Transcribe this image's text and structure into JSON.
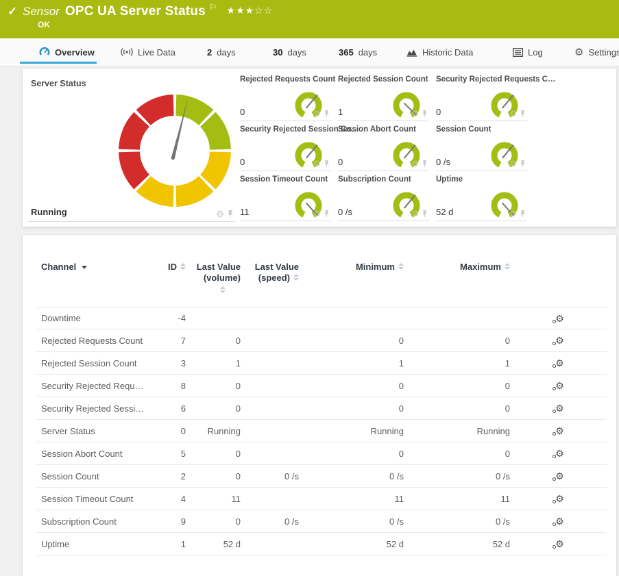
{
  "colors": {
    "header_green": "#a9ba10",
    "gauge_green": "#a3bd13",
    "gauge_yellow": "#f1c400",
    "gauge_red": "#d22d2b",
    "accent_blue": "#35a8dc",
    "needle_gray": "#767676"
  },
  "header": {
    "kind": "Sensor",
    "title": "OPC UA Server Status",
    "status": "OK",
    "stars": {
      "filled": 3,
      "total": 5
    }
  },
  "tabs": [
    {
      "label": "Overview",
      "icon": "gauge-icon",
      "active": true
    },
    {
      "label": "Live Data",
      "icon": "live-icon"
    },
    {
      "prefix": "2",
      "label": "days"
    },
    {
      "prefix": "30",
      "label": "days"
    },
    {
      "prefix": "365",
      "label": "days"
    },
    {
      "label": "Historic Data",
      "icon": "chart-icon"
    },
    {
      "label": "Log",
      "icon": "log-icon"
    },
    {
      "label": "Settings",
      "icon": "gear-icon"
    }
  ],
  "gauge_panel": {
    "main": {
      "title": "Server Status",
      "value": "Running",
      "needle_deg": 14,
      "segment_sweep_deg": 45,
      "segments": [
        "green",
        "green",
        "yellow",
        "yellow",
        "yellow",
        "red",
        "red",
        "red"
      ]
    },
    "minis": [
      {
        "title": "Rejected Requests Count",
        "value": "0",
        "needle_deg": 40
      },
      {
        "title": "Rejected Session Count",
        "value": "1",
        "needle_deg": 135
      },
      {
        "title": "Security Rejected Requests C…",
        "value": "0",
        "needle_deg": 40
      },
      {
        "title": "Security Rejected Session Co…",
        "value": "0",
        "needle_deg": 40
      },
      {
        "title": "Session Abort Count",
        "value": "0",
        "needle_deg": 40
      },
      {
        "title": "Session Count",
        "value": "0 /s",
        "needle_deg": 40
      },
      {
        "title": "Session Timeout Count",
        "value": "11",
        "needle_deg": 138
      },
      {
        "title": "Subscription Count",
        "value": "0 /s",
        "needle_deg": 40
      },
      {
        "title": "Uptime",
        "value": "52 d",
        "needle_deg": 138
      }
    ]
  },
  "table": {
    "columns": [
      {
        "label": "Channel",
        "sorted": "desc"
      },
      {
        "label": "ID"
      },
      {
        "line1": "Last Value",
        "line2": "(volume)"
      },
      {
        "line1": "Last Value",
        "line2": "(speed)"
      },
      {
        "label": "Minimum"
      },
      {
        "label": "Maximum"
      }
    ],
    "rows": [
      {
        "channel": "Downtime",
        "id": "-4",
        "last_volume": "",
        "last_speed": "",
        "min": "",
        "max": ""
      },
      {
        "channel": "Rejected Requests Count",
        "id": "7",
        "last_volume": "0",
        "last_speed": "",
        "min": "0",
        "max": "0"
      },
      {
        "channel": "Rejected Session Count",
        "id": "3",
        "last_volume": "1",
        "last_speed": "",
        "min": "1",
        "max": "1"
      },
      {
        "channel": "Security Rejected Requ…",
        "id": "8",
        "last_volume": "0",
        "last_speed": "",
        "min": "0",
        "max": "0"
      },
      {
        "channel": "Security Rejected Sessi…",
        "id": "6",
        "last_volume": "0",
        "last_speed": "",
        "min": "0",
        "max": "0"
      },
      {
        "channel": "Server Status",
        "id": "0",
        "last_volume": "Running",
        "last_speed": "",
        "min": "Running",
        "max": "Running"
      },
      {
        "channel": "Session Abort Count",
        "id": "5",
        "last_volume": "0",
        "last_speed": "",
        "min": "0",
        "max": "0"
      },
      {
        "channel": "Session Count",
        "id": "2",
        "last_volume": "0",
        "last_speed": "0 /s",
        "min": "0 /s",
        "max": "0 /s"
      },
      {
        "channel": "Session Timeout Count",
        "id": "4",
        "last_volume": "11",
        "last_speed": "",
        "min": "11",
        "max": "11"
      },
      {
        "channel": "Subscription Count",
        "id": "9",
        "last_volume": "0",
        "last_speed": "0 /s",
        "min": "0 /s",
        "max": "0 /s"
      },
      {
        "channel": "Uptime",
        "id": "1",
        "last_volume": "52 d",
        "last_speed": "",
        "min": "52 d",
        "max": "52 d"
      }
    ]
  }
}
